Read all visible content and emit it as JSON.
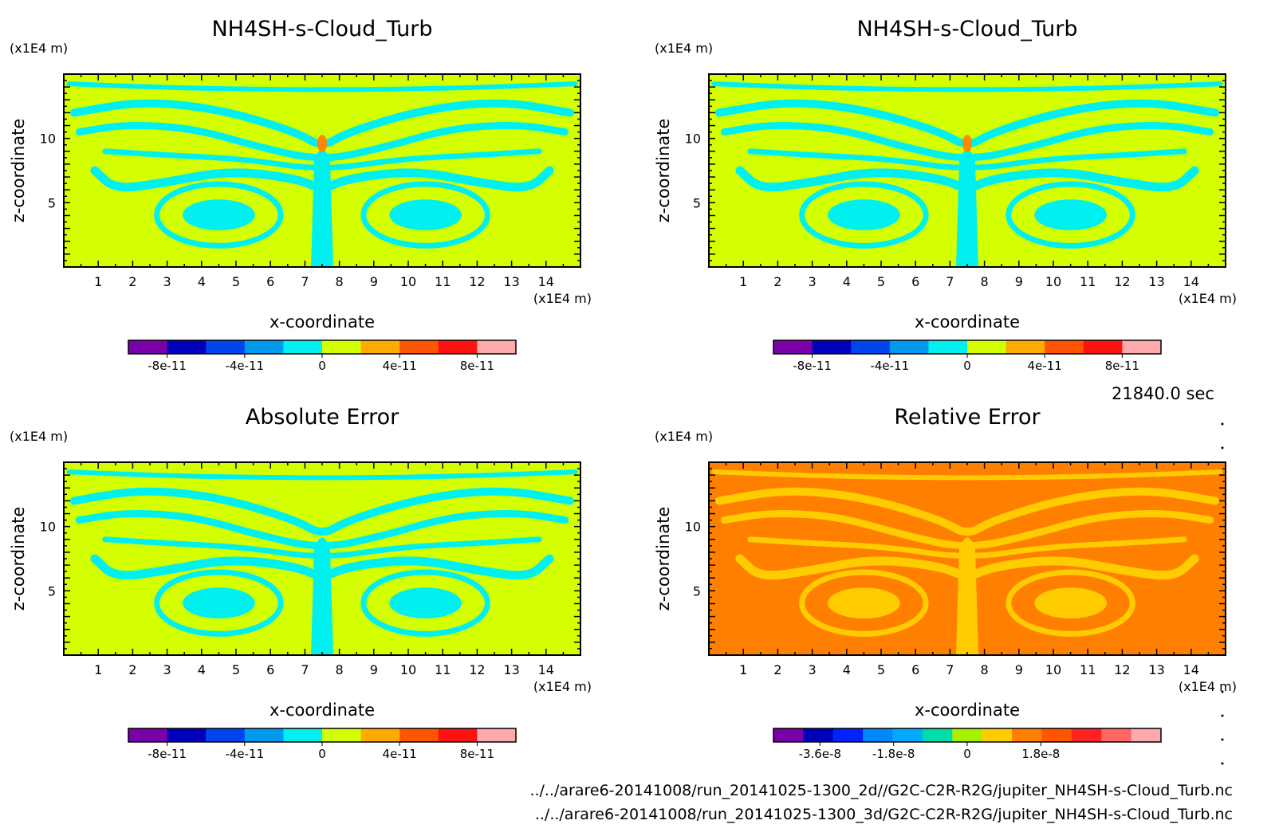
{
  "figure": {
    "timestamp": "21840.0 sec",
    "footer_lines": [
      "../../arare6-20141008/run_20141025-1300_2d//G2C-C2R-R2G/jupiter_NH4SH-s-Cloud_Turb.nc",
      "../../arare6-20141008/run_20141025-1300_3d/G2C-C2R-R2G/jupiter_NH4SH-s-Cloud_Turb.nc"
    ]
  },
  "chart_data": [
    {
      "type": "heatmap",
      "title": "NH4SH-s-Cloud_Turb",
      "xlabel": "x-coordinate",
      "ylabel": "z-coordinate",
      "x_unit": "(x1E4 m)",
      "y_unit": "(x1E4 m)",
      "xlim": [
        0,
        15
      ],
      "ylim": [
        0,
        15
      ],
      "x_ticks": [
        1,
        2,
        3,
        4,
        5,
        6,
        7,
        8,
        9,
        10,
        11,
        12,
        13,
        14
      ],
      "y_ticks": [
        5,
        10
      ],
      "background_color": "#d4ff00",
      "pattern_color": "#00f0f0",
      "colorbar": {
        "colors": [
          "#7a00aa",
          "#0000bb",
          "#0044ee",
          "#0099ee",
          "#00f0f0",
          "#d4ff00",
          "#ffaa00",
          "#ff5500",
          "#ff1111",
          "#ffaaaa"
        ],
        "tick_labels": [
          "-8e-11",
          "-4e-11",
          "0",
          "4e-11",
          "8e-11"
        ]
      }
    },
    {
      "type": "heatmap",
      "title": "NH4SH-s-Cloud_Turb",
      "xlabel": "x-coordinate",
      "ylabel": "z-coordinate",
      "x_unit": "(x1E4 m)",
      "y_unit": "(x1E4 m)",
      "xlim": [
        0,
        15
      ],
      "ylim": [
        0,
        15
      ],
      "x_ticks": [
        1,
        2,
        3,
        4,
        5,
        6,
        7,
        8,
        9,
        10,
        11,
        12,
        13,
        14
      ],
      "y_ticks": [
        5,
        10
      ],
      "background_color": "#d4ff00",
      "pattern_color": "#00f0f0",
      "colorbar": {
        "colors": [
          "#7a00aa",
          "#0000bb",
          "#0044ee",
          "#0099ee",
          "#00f0f0",
          "#d4ff00",
          "#ffaa00",
          "#ff5500",
          "#ff1111",
          "#ffaaaa"
        ],
        "tick_labels": [
          "-8e-11",
          "-4e-11",
          "0",
          "4e-11",
          "8e-11"
        ]
      }
    },
    {
      "type": "heatmap",
      "title": "Absolute Error",
      "xlabel": "x-coordinate",
      "ylabel": "z-coordinate",
      "x_unit": "(x1E4 m)",
      "y_unit": "(x1E4 m)",
      "xlim": [
        0,
        15
      ],
      "ylim": [
        0,
        15
      ],
      "x_ticks": [
        1,
        2,
        3,
        4,
        5,
        6,
        7,
        8,
        9,
        10,
        11,
        12,
        13,
        14
      ],
      "y_ticks": [
        5,
        10
      ],
      "background_color": "#d4ff00",
      "pattern_color": "#00f0f0",
      "colorbar": {
        "colors": [
          "#7a00aa",
          "#0000bb",
          "#0044ee",
          "#0099ee",
          "#00f0f0",
          "#d4ff00",
          "#ffaa00",
          "#ff5500",
          "#ff1111",
          "#ffaaaa"
        ],
        "tick_labels": [
          "-8e-11",
          "-4e-11",
          "0",
          "4e-11",
          "8e-11"
        ]
      }
    },
    {
      "type": "heatmap",
      "title": "Relative Error",
      "xlabel": "x-coordinate",
      "ylabel": "z-coordinate",
      "x_unit": "(x1E4 m)",
      "y_unit": "(x1E4 m)",
      "xlim": [
        0,
        15
      ],
      "ylim": [
        0,
        15
      ],
      "x_ticks": [
        1,
        2,
        3,
        4,
        5,
        6,
        7,
        8,
        9,
        10,
        11,
        12,
        13,
        14
      ],
      "y_ticks": [
        5,
        10
      ],
      "background_color": "#ff8000",
      "pattern_color": "#ffcc00",
      "colorbar": {
        "colors": [
          "#7a00aa",
          "#0000bb",
          "#0022ff",
          "#0088ff",
          "#00aaff",
          "#00ddaa",
          "#aaee00",
          "#ffcc00",
          "#ff8000",
          "#ff5500",
          "#ff2222",
          "#ff6666",
          "#ffaaaa"
        ],
        "tick_labels": [
          "-3.6e-8",
          "-1.8e-8",
          "0",
          "1.8e-8"
        ]
      }
    }
  ]
}
